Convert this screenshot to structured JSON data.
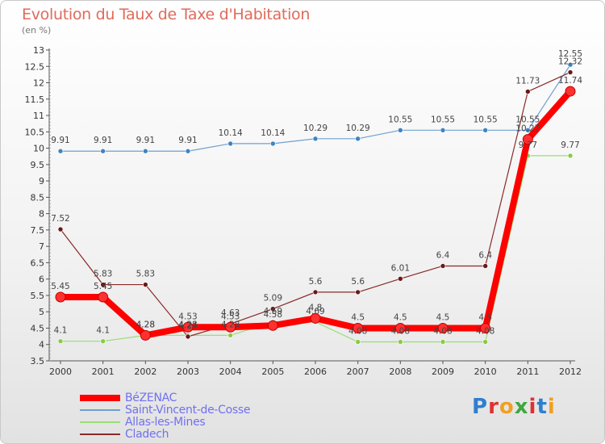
{
  "title": "Evolution du Taux de Taxe d'Habitation",
  "unit_label": "(en %)",
  "logo": {
    "text": "Proxiti",
    "letter_colors": [
      "#2f7fd0",
      "#e03030",
      "#f0a020",
      "#3fa83f",
      "#e03030",
      "#2f7fd0",
      "#f0a020"
    ]
  },
  "chart_data": {
    "type": "line",
    "x": [
      "2000",
      "2001",
      "2002",
      "2003",
      "2004",
      "2005",
      "2006",
      "2007",
      "2008",
      "2009",
      "2010",
      "2011",
      "2012"
    ],
    "ylim": [
      3.5,
      13
    ],
    "yticks": [
      "3.5",
      "4",
      "4.5",
      "5",
      "5.5",
      "6",
      "6.5",
      "7",
      "7.5",
      "8",
      "8.5",
      "9",
      "9.5",
      "10",
      "10.5",
      "11",
      "11.5",
      "12",
      "12.5",
      "13"
    ],
    "grid": false,
    "legend_position": "bottom-left",
    "series": [
      {
        "name": "BéZENAC",
        "color": "#ff0000",
        "point_color": "#ff3030",
        "width": 8,
        "values": [
          5.45,
          5.45,
          4.28,
          4.53,
          4.53,
          4.58,
          4.8,
          4.5,
          4.5,
          4.5,
          4.5,
          10.27,
          11.74
        ],
        "labels": [
          "5.45",
          "5.45",
          "4.28",
          "4.53",
          "4.53",
          "4.58",
          "4.8",
          "4.5",
          "4.5",
          "4.5",
          "4.5",
          "10.27",
          "11.74"
        ]
      },
      {
        "name": "Saint-Vincent-de-Cosse",
        "color": "#6fa0d0",
        "point_color": "#3f84c0",
        "width": 1.2,
        "values": [
          9.91,
          9.91,
          9.91,
          9.91,
          10.14,
          10.14,
          10.29,
          10.29,
          10.55,
          10.55,
          10.55,
          10.55,
          12.55
        ],
        "labels": [
          "9.91",
          "9.91",
          "9.91",
          "9.91",
          "10.14",
          "10.14",
          "10.29",
          "10.29",
          "10.55",
          "10.55",
          "10.55",
          "10.55",
          "12.55"
        ]
      },
      {
        "name": "Allas-les-Mines",
        "color": "#99dd77",
        "point_color": "#88cc44",
        "width": 1.2,
        "values": [
          4.1,
          4.1,
          4.28,
          4.28,
          4.28,
          4.69,
          4.69,
          4.08,
          4.08,
          4.08,
          4.08,
          9.77,
          9.77
        ],
        "labels": [
          "4.1",
          "4.1",
          "4.28",
          "4.28",
          "4.28",
          "4.69",
          "4.69",
          "4.08",
          "4.08",
          "4.08",
          "4.08",
          "9.77",
          "9.77"
        ]
      },
      {
        "name": "Cladech",
        "color": "#8a2a2a",
        "point_color": "#6a1818",
        "width": 1.2,
        "values": [
          7.52,
          5.83,
          5.83,
          4.24,
          4.63,
          5.09,
          5.6,
          5.6,
          6.01,
          6.4,
          6.4,
          11.73,
          12.32
        ],
        "labels": [
          "7.52",
          "5.83",
          "5.83",
          "4.24",
          "4.63",
          "5.09",
          "5.6",
          "5.6",
          "6.01",
          "6.4",
          "6.4",
          "11.73",
          "12.32"
        ]
      }
    ]
  }
}
